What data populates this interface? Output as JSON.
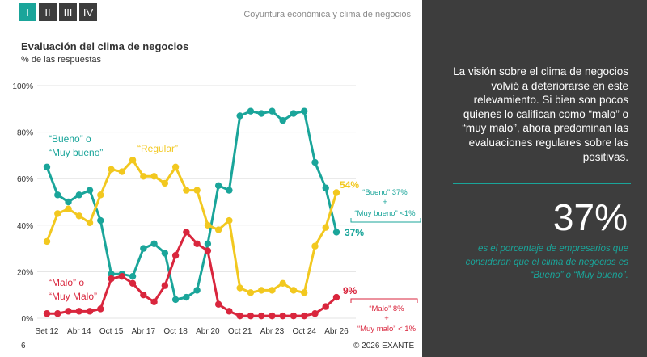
{
  "tabs": [
    {
      "label": "I",
      "active": true
    },
    {
      "label": "II",
      "active": false
    },
    {
      "label": "III",
      "active": false
    },
    {
      "label": "IV",
      "active": false
    }
  ],
  "header": {
    "title": "Coyuntura económica y clima de negocios"
  },
  "chart_title": "Evaluación del clima de negocios",
  "chart_subtitle": "% de las respuestas",
  "right_panel": {
    "text": "La visión sobre el clima de negocios volvió a deteriorarse en este relevamiento. Si bien son pocos quienes lo califican como “malo” o “muy malo”, ahora predominan las evaluaciones regulares sobre las positivas.",
    "big_value": "37%",
    "caption": "es el porcentaje de empresarios que consideran que el clima de negocios es “Bueno” o “Muy bueno”."
  },
  "footer": {
    "page": "6",
    "copyright": "© 2026 EXANTE"
  },
  "colors": {
    "teal": "#1aa59a",
    "yellow": "#f2c81f",
    "red": "#d9263d",
    "dark_panel": "#3d3d3d"
  },
  "chart_data": {
    "type": "line",
    "x_tick_labels": [
      "Set 12",
      "Abr 14",
      "Oct 15",
      "Abr 17",
      "Oct 18",
      "Abr 20",
      "Oct 21",
      "Abr 23",
      "Oct 24",
      "Abr 26"
    ],
    "y_tick_labels": [
      "0%",
      "20%",
      "40%",
      "60%",
      "80%",
      "100%"
    ],
    "ylim": [
      0,
      100
    ],
    "series": [
      {
        "name": "“Bueno” o “Muy bueno”",
        "color": "#1aa59a",
        "end_label": "37%",
        "values": [
          65,
          53,
          50,
          53,
          55,
          42,
          19,
          19,
          18,
          30,
          32,
          28,
          8,
          9,
          12,
          32,
          57,
          55,
          87,
          89,
          88,
          89,
          85,
          88,
          89,
          67,
          56,
          37
        ]
      },
      {
        "name": "“Regular”",
        "color": "#f2c81f",
        "end_label": "54%",
        "values": [
          33,
          45,
          47,
          44,
          41,
          53,
          64,
          63,
          68,
          61,
          61,
          58,
          65,
          55,
          55,
          40,
          38,
          42,
          13,
          11,
          12,
          12,
          15,
          12,
          11,
          31,
          39,
          54
        ]
      },
      {
        "name": "“Malo” o “Muy Malo”",
        "color": "#d9263d",
        "end_label": "9%",
        "values": [
          2,
          2,
          3,
          3,
          3,
          4,
          17,
          18,
          15,
          10,
          7,
          14,
          27,
          37,
          32,
          29,
          6,
          3,
          1,
          1,
          1,
          1,
          1,
          1,
          1,
          2,
          5,
          9
        ]
      }
    ],
    "annotations": [
      {
        "text": "“Bueno” 37%",
        "color": "#1aa59a"
      },
      {
        "text": "+",
        "color": "#1aa59a"
      },
      {
        "text": "“Muy bueno” <1%",
        "color": "#1aa59a"
      },
      {
        "text": "“Malo” 8%",
        "color": "#d9263d"
      },
      {
        "text": "+",
        "color": "#d9263d"
      },
      {
        "text": "“Muy malo” < 1%",
        "color": "#d9263d"
      }
    ],
    "legend_labels": [
      {
        "lines": [
          "“Bueno” o",
          "“Muy bueno”"
        ],
        "color": "#1aa59a"
      },
      {
        "lines": [
          "“Regular”"
        ],
        "color": "#f2c81f"
      },
      {
        "lines": [
          "“Malo” o",
          "“Muy Malo”"
        ],
        "color": "#d9263d"
      }
    ]
  }
}
